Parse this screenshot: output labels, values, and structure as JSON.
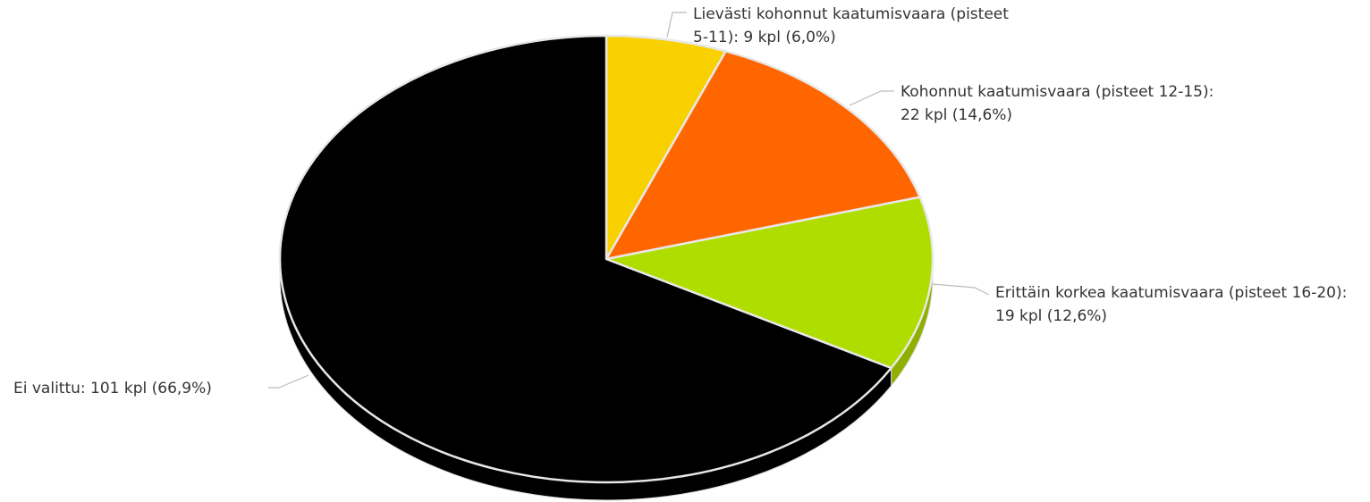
{
  "chart_data": {
    "type": "pie",
    "values": [
      9,
      22,
      19,
      101
    ],
    "value_labels": [
      "Lievästi kohonnut kaatumisvaara (pisteet 5-11): 9 kpl (6,0%)",
      "Kohonnut kaatumisvaara (pisteet 12-15): 22 kpl (14,6%)",
      "Erittäin korkea kaatumisvaara (pisteet 16-20): 19 kpl (12,6%)",
      "Ei valittu: 101 kpl (66,9%)"
    ],
    "colors": [
      "#f9d000",
      "#ff6600",
      "#b0dd00",
      "#000000"
    ],
    "side_colors": [
      "#c9a800",
      "#cc5200",
      "#8fb000",
      "#000000"
    ]
  }
}
